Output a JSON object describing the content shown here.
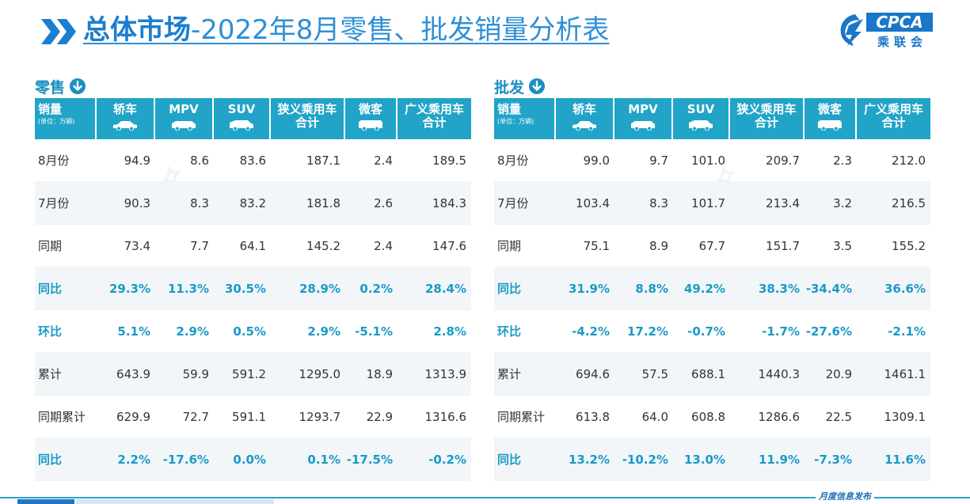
{
  "header": {
    "title_bold": "总体市场",
    "title_rest": "-2022年8月零售、批发销量分析表",
    "logo_text": "CPCA",
    "logo_cn": "乘联会"
  },
  "columns": {
    "unit_label": "销量",
    "unit_note": "(单位：万辆)",
    "headers": [
      {
        "line1": "轿车",
        "line2": "",
        "icon": "car-icon"
      },
      {
        "line1": "MPV",
        "line2": "",
        "icon": "mpv-icon"
      },
      {
        "line1": "SUV",
        "line2": "",
        "icon": "suv-icon"
      },
      {
        "line1": "狭义乘用车",
        "line2": "合计",
        "icon": ""
      },
      {
        "line1": "微客",
        "line2": "",
        "icon": "van-icon"
      },
      {
        "line1": "广义乘用车",
        "line2": "合计",
        "icon": ""
      }
    ]
  },
  "retail": {
    "title": "零售",
    "rows": [
      {
        "label": "8月份",
        "values": [
          "94.9",
          "8.6",
          "83.6",
          "187.1",
          "2.4",
          "189.5"
        ],
        "highlight": false
      },
      {
        "label": "7月份",
        "values": [
          "90.3",
          "8.3",
          "83.2",
          "181.8",
          "2.6",
          "184.3"
        ],
        "highlight": false
      },
      {
        "label": "同期",
        "values": [
          "73.4",
          "7.7",
          "64.1",
          "145.2",
          "2.4",
          "147.6"
        ],
        "highlight": false
      },
      {
        "label": "同比",
        "values": [
          "29.3%",
          "11.3%",
          "30.5%",
          "28.9%",
          "0.2%",
          "28.4%"
        ],
        "highlight": true
      },
      {
        "label": "环比",
        "values": [
          "5.1%",
          "2.9%",
          "0.5%",
          "2.9%",
          "-5.1%",
          "2.8%"
        ],
        "highlight": true
      },
      {
        "label": "累计",
        "values": [
          "643.9",
          "59.9",
          "591.2",
          "1295.0",
          "18.9",
          "1313.9"
        ],
        "highlight": false
      },
      {
        "label": "同期累计",
        "values": [
          "629.9",
          "72.7",
          "591.1",
          "1293.7",
          "22.9",
          "1316.6"
        ],
        "highlight": false
      },
      {
        "label": "同比",
        "values": [
          "2.2%",
          "-17.6%",
          "0.0%",
          "0.1%",
          "-17.5%",
          "-0.2%"
        ],
        "highlight": true
      }
    ]
  },
  "wholesale": {
    "title": "批发",
    "rows": [
      {
        "label": "8月份",
        "values": [
          "99.0",
          "9.7",
          "101.0",
          "209.7",
          "2.3",
          "212.0"
        ],
        "highlight": false
      },
      {
        "label": "7月份",
        "values": [
          "103.4",
          "8.3",
          "101.7",
          "213.4",
          "3.2",
          "216.5"
        ],
        "highlight": false
      },
      {
        "label": "同期",
        "values": [
          "75.1",
          "8.9",
          "67.7",
          "151.7",
          "3.5",
          "155.2"
        ],
        "highlight": false
      },
      {
        "label": "同比",
        "values": [
          "31.9%",
          "8.8%",
          "49.2%",
          "38.3%",
          "-34.4%",
          "36.6%"
        ],
        "highlight": true
      },
      {
        "label": "环比",
        "values": [
          "-4.2%",
          "17.2%",
          "-0.7%",
          "-1.7%",
          "-27.6%",
          "-2.1%"
        ],
        "highlight": true
      },
      {
        "label": "累计",
        "values": [
          "694.6",
          "57.5",
          "688.1",
          "1440.3",
          "20.9",
          "1461.1"
        ],
        "highlight": false
      },
      {
        "label": "同期累计",
        "values": [
          "613.8",
          "64.0",
          "608.8",
          "1286.6",
          "22.5",
          "1309.1"
        ],
        "highlight": false
      },
      {
        "label": "同比",
        "values": [
          "13.2%",
          "-10.2%",
          "13.0%",
          "11.9%",
          "-7.3%",
          "11.6%"
        ],
        "highlight": true
      }
    ]
  },
  "footer": {
    "text": "月度信息发布"
  },
  "colors": {
    "header_bg": "#21a4c8",
    "highlight_text": "#1a9ac6",
    "title_blue": "#1a7fd0"
  }
}
